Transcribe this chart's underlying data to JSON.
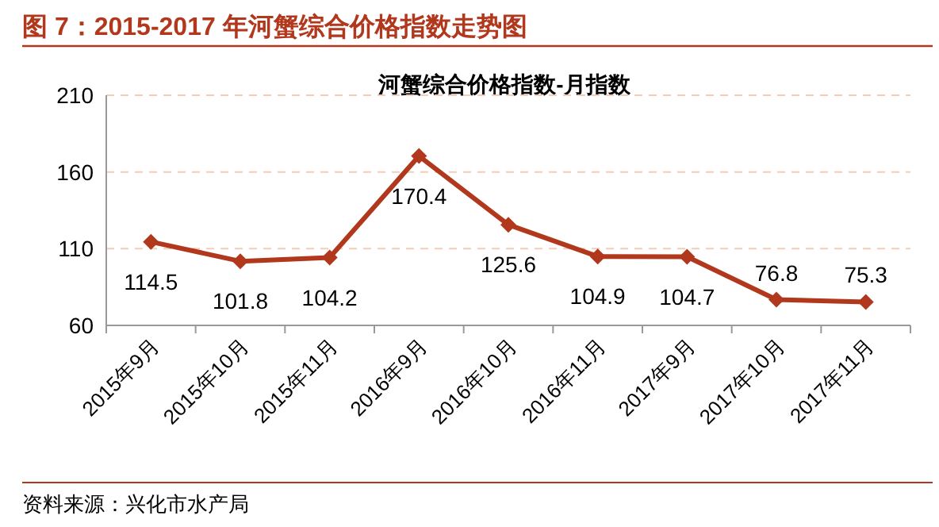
{
  "chart_data": {
    "type": "line",
    "title": "图 7：2015-2017 年河蟹综合价格指数走势图",
    "subtitle": "河蟹综合价格指数-月指数",
    "categories": [
      "2015年9月",
      "2015年10月",
      "2015年11月",
      "2016年9月",
      "2016年10月",
      "2016年11月",
      "2017年9月",
      "2017年10月",
      "2017年11月"
    ],
    "series": [
      {
        "color": "#b1381d",
        "values": [
          114.5,
          101.8,
          104.2,
          170.4,
          125.6,
          104.9,
          104.7,
          76.8,
          75.3
        ]
      }
    ],
    "ylim": [
      60,
      210
    ],
    "yticks": [
      60,
      110,
      160,
      210
    ],
    "grid": "y",
    "marker": "diamond",
    "line_style": "solid",
    "data_labels": true,
    "annotations": [
      "资料来源：兴化市水产局"
    ]
  }
}
